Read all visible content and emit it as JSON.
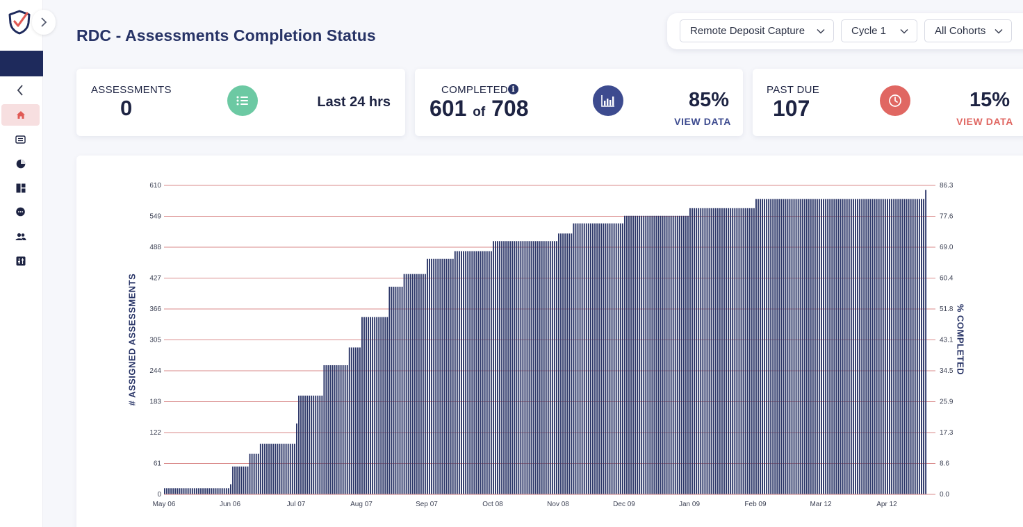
{
  "sidebar": {
    "items": [
      {
        "icon": "home-icon",
        "active": true
      },
      {
        "icon": "list-card-icon",
        "active": false
      },
      {
        "icon": "pie-chart-icon",
        "active": false
      },
      {
        "icon": "dashboard-icon",
        "active": false
      },
      {
        "icon": "chat-icon",
        "active": false
      },
      {
        "icon": "users-icon",
        "active": false
      },
      {
        "icon": "settings-sliders-icon",
        "active": false
      }
    ],
    "accent": "#1e2a5c",
    "active_bg": "#f7dfe0",
    "active_color": "#e05a55"
  },
  "header": {
    "title": "RDC - Assessments Completion Status"
  },
  "filters": {
    "product": "Remote Deposit Capture",
    "cycle": "Cycle 1",
    "cohort": "All Cohorts"
  },
  "cards": {
    "assessments": {
      "label": "ASSESSMENTS",
      "value": "0",
      "period": "Last 24 hrs",
      "icon": "list-icon",
      "icon_color": "#6cc9a3"
    },
    "completed": {
      "label": "COMPLETED",
      "value": "601",
      "of_label": "of",
      "total": "708",
      "percent": "85%",
      "link": "VIEW DATA",
      "icon": "bar-chart-icon",
      "icon_color": "#3d4b8f",
      "link_color": "#3d4b8f"
    },
    "past_due": {
      "label": "PAST DUE",
      "value": "107",
      "percent": "15%",
      "link": "VIEW DATA",
      "icon": "clock-icon",
      "icon_color": "#e06762",
      "link_color": "#e06762"
    }
  },
  "chart_data": {
    "type": "bar",
    "ylabel": "# ASSIGNED ASSESSMENTS",
    "y2label": "% COMPLETED",
    "ylim": [
      0,
      610
    ],
    "y2lim": [
      0,
      86.3
    ],
    "yticks": [
      "0",
      "61",
      "122",
      "183",
      "244",
      "305",
      "366",
      "427",
      "488",
      "549",
      "610"
    ],
    "y2ticks": [
      "0.0",
      "8.6",
      "17.3",
      "25.9",
      "34.5",
      "43.1",
      "51.8",
      "60.4",
      "69.0",
      "77.6",
      "86.3"
    ],
    "xticks": [
      "May 06",
      "Jun 06",
      "Jul 07",
      "Aug 07",
      "Sep 07",
      "Oct 08",
      "Nov 08",
      "Dec 09",
      "Jan 09",
      "Feb 09",
      "Mar 12",
      "Apr 12"
    ],
    "grid": true,
    "bar_color": "#2b3668",
    "grid_color": "#d98a8a",
    "series_description": "cumulative completed assessments per day",
    "series_anchor_values": [
      {
        "x": "May 06",
        "y": 12
      },
      {
        "x": "Jun 06",
        "y": 20
      },
      {
        "x": "Jun 07",
        "y": 55
      },
      {
        "x": "Jun 15",
        "y": 80
      },
      {
        "x": "Jun 20",
        "y": 100
      },
      {
        "x": "Jul 07",
        "y": 140
      },
      {
        "x": "Jul 08",
        "y": 195
      },
      {
        "x": "Jul 20",
        "y": 255
      },
      {
        "x": "Aug 01",
        "y": 290
      },
      {
        "x": "Aug 07",
        "y": 350
      },
      {
        "x": "Aug 20",
        "y": 410
      },
      {
        "x": "Aug 27",
        "y": 435
      },
      {
        "x": "Sep 07",
        "y": 465
      },
      {
        "x": "Sep 20",
        "y": 480
      },
      {
        "x": "Oct 08",
        "y": 500
      },
      {
        "x": "Nov 08",
        "y": 515
      },
      {
        "x": "Nov 15",
        "y": 535
      },
      {
        "x": "Dec 09",
        "y": 550
      },
      {
        "x": "Jan 09",
        "y": 565
      },
      {
        "x": "Feb 09",
        "y": 583
      },
      {
        "x": "Mar 12",
        "y": 583
      },
      {
        "x": "Apr 12",
        "y": 583
      },
      {
        "x": "Apr 30",
        "y": 601
      }
    ]
  }
}
